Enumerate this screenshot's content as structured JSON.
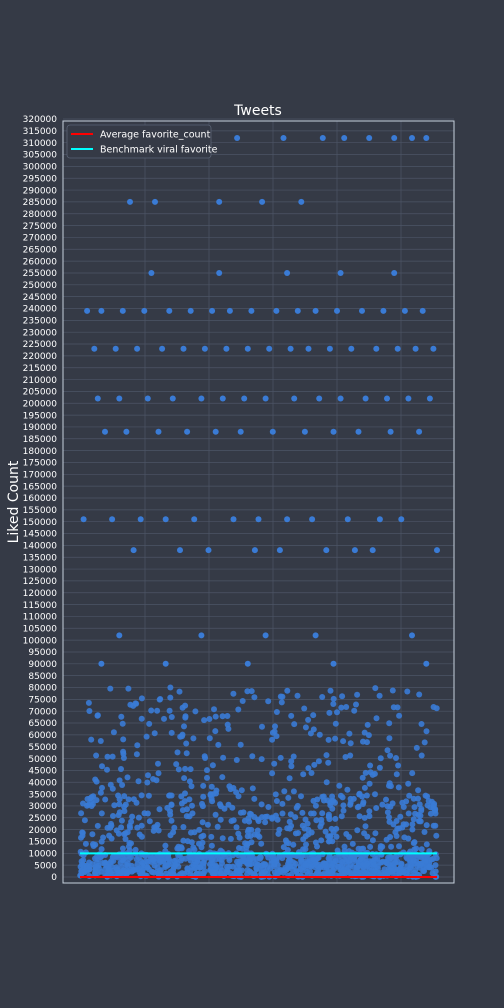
{
  "chart_data": {
    "type": "scatter",
    "title": "Tweets",
    "xlabel": "",
    "ylabel": "Liked Count",
    "ylim": [
      0,
      320000
    ],
    "y_tick_step": 5000,
    "x_tick_labels": false,
    "grid": true,
    "legend_position": "top-left",
    "colors": {
      "background": "#353a46",
      "plot_border": "#c8d1de",
      "grid": "#4d5566",
      "points": "#3a7bd5",
      "average_line": "#ff0000",
      "benchmark_line": "#00ffff"
    },
    "series": [
      {
        "name": "Average favorite_count",
        "kind": "line",
        "y": 0
      },
      {
        "name": "Benchmark viral favorite",
        "kind": "line",
        "y": 10000
      },
      {
        "kind": "scatter",
        "x": [
          3,
          8,
          14,
          21,
          27,
          33,
          39,
          44,
          51,
          57,
          62,
          68,
          74,
          81,
          88,
          93,
          97,
          2,
          6,
          12,
          18,
          25,
          31,
          37,
          42,
          48,
          55,
          61,
          66,
          72,
          79,
          85,
          91,
          96,
          4,
          10,
          16,
          23,
          29,
          35,
          41,
          47,
          53,
          59,
          64,
          70,
          76,
          83,
          89,
          94,
          99,
          5,
          11,
          19,
          26,
          34,
          40,
          46,
          52,
          60,
          67,
          73,
          80,
          86,
          92,
          98,
          7,
          13,
          22,
          30,
          38,
          45,
          54,
          63,
          71,
          78,
          87,
          95,
          1,
          9,
          17,
          24,
          32,
          43,
          50,
          58,
          65,
          75,
          84,
          90,
          15,
          28,
          36,
          49,
          56,
          69,
          77,
          82,
          100,
          20,
          39,
          58,
          73,
          88,
          11,
          34,
          52,
          66,
          93,
          6,
          24,
          47,
          71,
          97
        ],
        "y": [
          312000,
          312000,
          285000,
          285000,
          312000,
          312000,
          285000,
          312000,
          285000,
          312000,
          285000,
          312000,
          312000,
          312000,
          312000,
          312000,
          312000,
          239000,
          239000,
          239000,
          239000,
          239000,
          239000,
          239000,
          239000,
          239000,
          239000,
          239000,
          239000,
          239000,
          239000,
          239000,
          239000,
          239000,
          223000,
          223000,
          223000,
          223000,
          223000,
          223000,
          223000,
          223000,
          223000,
          223000,
          223000,
          223000,
          223000,
          223000,
          223000,
          223000,
          223000,
          202000,
          202000,
          202000,
          202000,
          202000,
          202000,
          202000,
          202000,
          202000,
          202000,
          202000,
          202000,
          202000,
          202000,
          202000,
          188000,
          188000,
          188000,
          188000,
          188000,
          188000,
          188000,
          188000,
          188000,
          188000,
          188000,
          188000,
          151000,
          151000,
          151000,
          151000,
          151000,
          151000,
          151000,
          151000,
          151000,
          151000,
          151000,
          151000,
          138000,
          138000,
          138000,
          138000,
          138000,
          138000,
          138000,
          138000,
          138000,
          255000,
          255000,
          255000,
          255000,
          255000,
          102000,
          102000,
          102000,
          102000,
          102000,
          90000,
          90000,
          90000,
          90000,
          90000
        ]
      }
    ]
  }
}
